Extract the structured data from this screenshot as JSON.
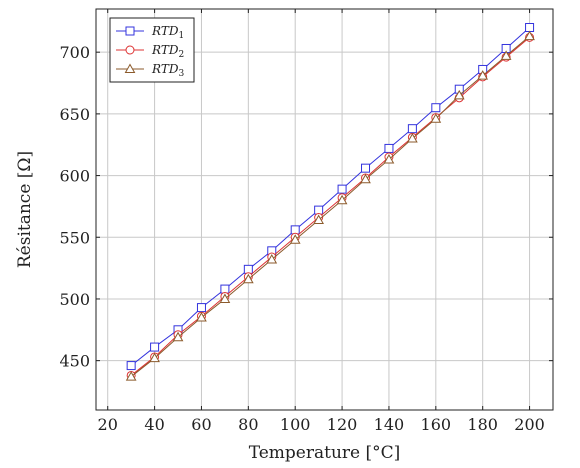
{
  "chart_data": {
    "type": "line",
    "xlabel": "Temperature [°C]",
    "ylabel": "Résitance [Ω]",
    "xlim": [
      15,
      210
    ],
    "ylim": [
      410,
      735
    ],
    "xticks": [
      20,
      40,
      60,
      80,
      100,
      120,
      140,
      160,
      180,
      200
    ],
    "yticks": [
      450,
      500,
      550,
      600,
      650,
      700
    ],
    "grid": true,
    "legend_position": "top-left",
    "x": [
      30,
      40,
      50,
      60,
      70,
      80,
      90,
      100,
      110,
      120,
      130,
      140,
      150,
      160,
      170,
      180,
      190,
      200
    ],
    "series": [
      {
        "name": "RTD",
        "subscript": "1",
        "color": "#3333dd",
        "marker": "square",
        "values": [
          446,
          461,
          475,
          493,
          508,
          524,
          539,
          556,
          572,
          589,
          606,
          622,
          638,
          655,
          670,
          686,
          703,
          720
        ]
      },
      {
        "name": "RTD",
        "subscript": "2",
        "color": "#dd3333",
        "marker": "circle",
        "values": [
          438,
          453,
          471,
          486,
          502,
          518,
          534,
          550,
          566,
          582,
          598,
          615,
          631,
          647,
          663,
          680,
          696,
          712
        ]
      },
      {
        "name": "RTD",
        "subscript": "3",
        "color": "#8b5a2b",
        "marker": "triangle",
        "values": [
          437,
          452,
          469,
          485,
          500,
          516,
          532,
          548,
          564,
          580,
          597,
          613,
          630,
          646,
          665,
          681,
          697,
          713
        ]
      }
    ]
  }
}
